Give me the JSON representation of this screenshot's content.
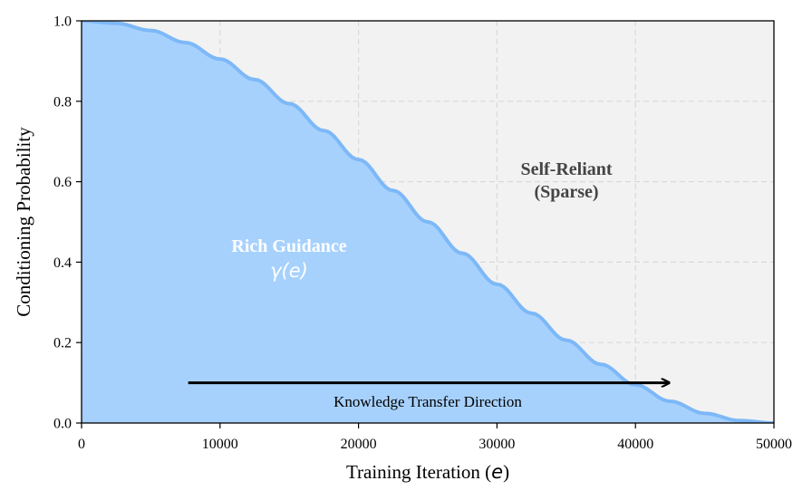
{
  "chart_data": {
    "type": "area",
    "title": "",
    "xlabel": "Training Iteration (",
    "xlabel_math": "e",
    "xlabel_close": ")",
    "ylabel": "Conditioning Probability",
    "xlim": [
      0,
      50000
    ],
    "ylim": [
      0.0,
      1.0
    ],
    "x_ticks": [
      0,
      10000,
      20000,
      30000,
      40000,
      50000
    ],
    "x_tick_labels": [
      "0",
      "10000",
      "20000",
      "30000",
      "40000",
      "50000"
    ],
    "y_ticks": [
      0.0,
      0.2,
      0.4,
      0.6,
      0.8,
      1.0
    ],
    "y_tick_labels": [
      "0.0",
      "0.2",
      "0.4",
      "0.6",
      "0.8",
      "1.0"
    ],
    "grid": true,
    "curve": {
      "x": [
        0,
        2500,
        5000,
        7500,
        10000,
        12500,
        15000,
        17500,
        20000,
        22500,
        25000,
        27500,
        30000,
        32500,
        35000,
        37500,
        40000,
        42500,
        45000,
        47500,
        50000
      ],
      "y": [
        1.0,
        0.994,
        0.976,
        0.946,
        0.905,
        0.854,
        0.794,
        0.727,
        0.655,
        0.578,
        0.5,
        0.422,
        0.345,
        0.273,
        0.206,
        0.146,
        0.095,
        0.054,
        0.024,
        0.006,
        0.0
      ],
      "fill_color": "#a7d1fd",
      "line_color": "#7db8f7"
    },
    "background_color": "#f2f2f2",
    "annotations": {
      "rich_guidance": "Rich Guidance",
      "gamma": "γ(e)",
      "self_reliant_line1": "Self-Reliant",
      "self_reliant_line2": "(Sparse)",
      "transfer": "Knowledge Transfer Direction"
    },
    "arrow": {
      "x_start": 7700,
      "x_end": 42500,
      "y": 0.1
    }
  }
}
